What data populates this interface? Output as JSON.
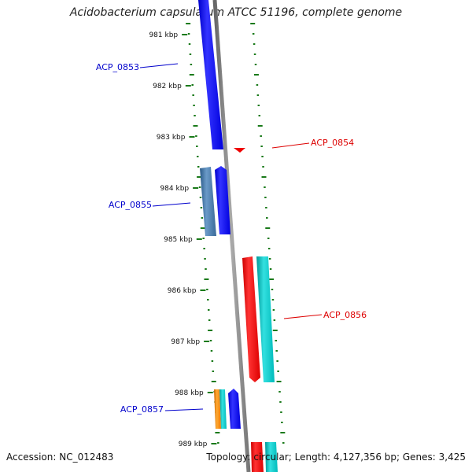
{
  "title": "Acidobacterium capsulatum ATCC 51196, complete genome",
  "accession_text": "Accession: NC_012483",
  "topology_text": "Topology: circular; Length: 4,127,356 bp; Genes: 3,425",
  "kbp_labels": [
    "981 kbp",
    "982 kbp",
    "983 kbp",
    "984 kbp",
    "985 kbp",
    "986 kbp",
    "987 kbp",
    "988 kbp",
    "989 kbp"
  ],
  "genes": [
    {
      "label": "ACP_0853",
      "color": "#0000cc"
    },
    {
      "label": "ACP_0854",
      "color": "#dd0000"
    },
    {
      "label": "ACP_0855",
      "color": "#0000cc"
    },
    {
      "label": "ACP_0856",
      "color": "#dd0000"
    },
    {
      "label": "ACP_0857",
      "color": "#0000cc"
    }
  ],
  "colors": {
    "backbone": "#8a8a8a",
    "dots": "#1a7a1a",
    "forward_gene": "#0000ff",
    "reverse_gene": "#ff0000",
    "cyan_gene": "#00cccc",
    "steel_gene": "#4a7aa8",
    "orange_gene": "#ff8800"
  }
}
